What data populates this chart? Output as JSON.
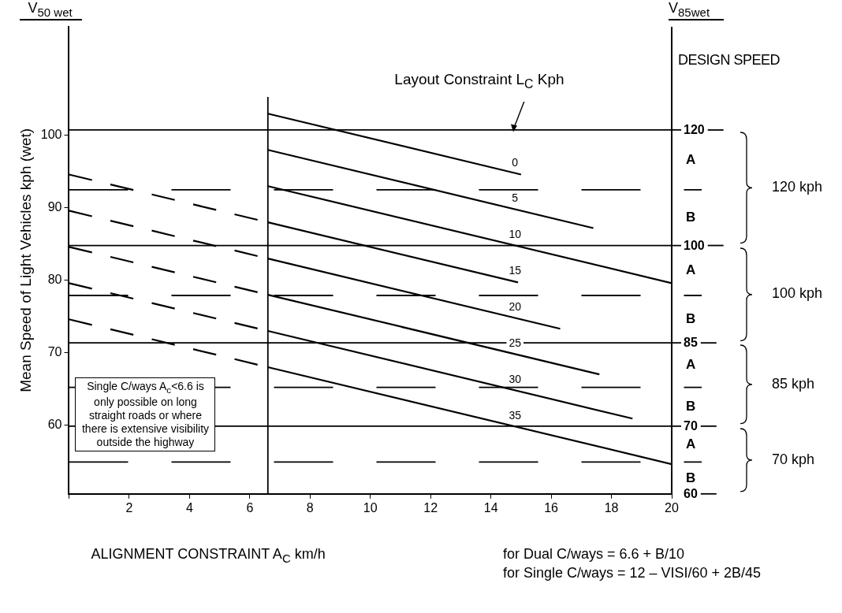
{
  "chart_data": {
    "type": "line",
    "xlabel": "ALIGNMENT CONSTRAINT  A$_{C}$  km/h",
    "ylabel": "Mean Speed of Light Vehicles kph (wet)",
    "legend_title": "Layout Constraint L$_{C}$ Kph",
    "annotations": [
      "V$_{50 wet}$",
      "V$_{85wet}$",
      "DESIGN SPEED",
      "Single C/ways A$_{c}$<6.6 is only possible on long straight roads or where there is extensive visibility outside the highway",
      "for Dual C/ways = 6.6 + B/10",
      "for Single C/ways = 12 – VISI/60 + 2B/45",
      "120 kph",
      "100 kph",
      "85 kph",
      "70 kph",
      "120",
      "100",
      "85",
      "70",
      "60",
      "A",
      "B",
      "A",
      "B",
      "A",
      "B",
      "A",
      "B"
    ],
    "xlim": [
      0,
      20
    ],
    "xticks": [
      {
        "value": 0,
        "label": null
      },
      2,
      4,
      6,
      8,
      10,
      12,
      14,
      16,
      18,
      20
    ],
    "ylim": [
      50.5,
      115
    ],
    "yticks": [
      60,
      70,
      80,
      90,
      100
    ],
    "legend": false,
    "series": [
      {
        "name": "0",
        "color": "#000000",
        "x": [
          6.6,
          15
        ],
        "values": [
          103,
          94.6
        ]
      },
      {
        "name": "5",
        "color": "#000000",
        "x": [
          6.6,
          17.4
        ],
        "values": [
          98,
          87.2
        ]
      },
      {
        "name": "10",
        "color": "#000000",
        "x": [
          6.6,
          20
        ],
        "values": [
          93,
          79.6
        ]
      },
      {
        "name": "15",
        "color": "#000000",
        "x": [
          6.6,
          14.9
        ],
        "values": [
          88,
          79.7
        ]
      },
      {
        "name": "20",
        "color": "#000000",
        "x": [
          6.6,
          16.3
        ],
        "values": [
          83,
          73.3
        ]
      },
      {
        "name": "25",
        "color": "#000000",
        "x": [
          6.6,
          17.6
        ],
        "values": [
          78,
          67
        ]
      },
      {
        "name": "30",
        "color": "#000000",
        "x": [
          6.6,
          18.7
        ],
        "values": [
          73,
          60.9
        ]
      },
      {
        "name": "35",
        "color": "#000000",
        "x": [
          6.6,
          20
        ],
        "values": [
          68,
          54.6
        ]
      },
      {
        "color": "#000000",
        "line_style": "dashed",
        "x": [
          0,
          6.6
        ],
        "values": [
          94.6,
          88
        ]
      },
      {
        "color": "#000000",
        "line_style": "dashed",
        "x": [
          0,
          6.6
        ],
        "values": [
          89.6,
          83
        ]
      },
      {
        "color": "#000000",
        "line_style": "dashed",
        "x": [
          0,
          6.6
        ],
        "values": [
          84.6,
          78
        ]
      },
      {
        "color": "#000000",
        "line_style": "dashed",
        "x": [
          0,
          6.6
        ],
        "values": [
          79.6,
          73
        ]
      },
      {
        "color": "#000000",
        "line_style": "dashed",
        "x": [
          0,
          6.6
        ],
        "values": [
          74.6,
          68
        ]
      }
    ],
    "ref_lines": [
      {
        "axis": "x",
        "value": 6.6,
        "color": "#000000"
      },
      {
        "axis": "y",
        "value": 100.75,
        "color": "#000000"
      },
      {
        "axis": "y",
        "value": 92.5,
        "color": "#000000",
        "line_style": "dashed"
      },
      {
        "axis": "y",
        "value": 84.8,
        "color": "#000000"
      },
      {
        "axis": "y",
        "value": 77.9,
        "color": "#000000",
        "line_style": "dashed"
      },
      {
        "axis": "y",
        "value": 71.35,
        "color": "#000000"
      },
      {
        "axis": "y",
        "value": 65.2,
        "color": "#000000",
        "line_style": "dashed"
      },
      {
        "axis": "y",
        "value": 59.85,
        "color": "#000000"
      },
      {
        "axis": "y",
        "value": 54.9,
        "color": "#000000",
        "line_style": "dashed"
      }
    ]
  }
}
